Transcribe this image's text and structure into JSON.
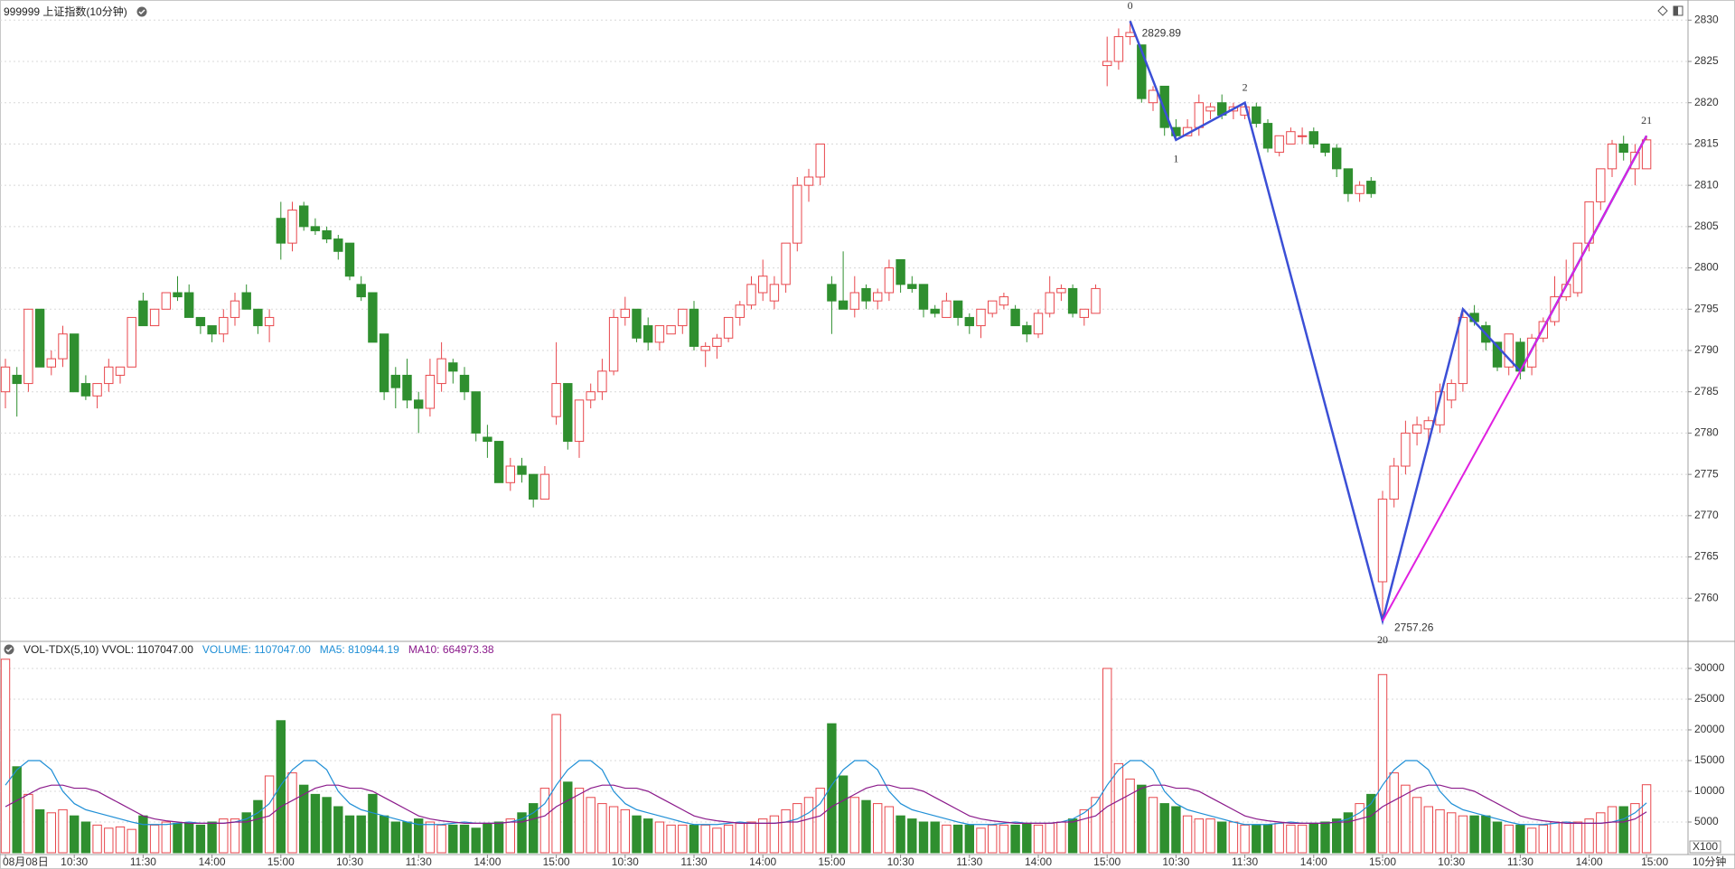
{
  "chart_data": {
    "type": "candlestick",
    "title": "999999 上证指数(10分钟)",
    "timeframe": "10分钟",
    "categories": [
      "08月08日",
      null,
      null,
      null,
      null,
      null,
      "10:30",
      null,
      null,
      null,
      null,
      null,
      "11:30",
      null,
      null,
      null,
      null,
      null,
      "14:00",
      null,
      null,
      null,
      null,
      null,
      "15:00",
      null,
      null,
      null,
      null,
      null,
      "10:30",
      null,
      null,
      null,
      null,
      null,
      "11:30",
      null,
      null,
      null,
      null,
      null,
      "14:00",
      null,
      null,
      null,
      null,
      null,
      "15:00",
      null,
      null,
      null,
      null,
      null,
      "10:30",
      null,
      null,
      null,
      null,
      null,
      "11:30",
      null,
      null,
      null,
      null,
      null,
      "14:00",
      null,
      null,
      null,
      null,
      null,
      "15:00",
      null,
      null,
      null,
      null,
      null,
      "10:30",
      null,
      null,
      null,
      null,
      null,
      "11:30",
      null,
      null,
      null,
      null,
      null,
      "14:00",
      null,
      null,
      null,
      null,
      null,
      "15:00",
      null,
      null,
      null,
      null,
      null,
      "10:30",
      null,
      null,
      null,
      null,
      null,
      "11:30",
      null,
      null,
      null,
      null,
      null,
      "14:00",
      null,
      null,
      null,
      null,
      null,
      "15:00",
      null,
      null,
      null,
      null,
      null,
      "10:30",
      null,
      null,
      null,
      null,
      null,
      "11:30",
      null,
      null,
      null,
      null,
      null,
      "14:00",
      null,
      null,
      null,
      null,
      "15:00"
    ],
    "open": [
      2785,
      2787,
      2786,
      2795,
      2788,
      2789,
      2792,
      2786,
      2784.5,
      2786,
      2787,
      2788,
      2796,
      2793,
      2795,
      2797,
      2797,
      2794,
      2793,
      2792,
      2794,
      2797,
      2795,
      2793,
      2806,
      2803,
      2807.5,
      2805,
      2804.5,
      2803.5,
      2803,
      2798,
      2797,
      2792,
      2787,
      2787,
      2784,
      2783,
      2786,
      2788.5,
      2787,
      2785,
      2779.5,
      2779,
      2774,
      2776,
      2775,
      2772,
      2782,
      2786,
      2779,
      2784,
      2785,
      2787.5,
      2794,
      2795,
      2793,
      2791,
      2792,
      2793,
      2795,
      2790,
      2790.5,
      2791.5,
      2794,
      2795.5,
      2797,
      2796,
      2798,
      2803,
      2810,
      2811,
      2798,
      2796,
      2795,
      2797.5,
      2796,
      2797,
      2801,
      2798,
      2798,
      2795,
      2794,
      2796,
      2794,
      2793,
      2794.5,
      2795.5,
      2795,
      2793,
      2792,
      2794.5,
      2797,
      2797.5,
      2794,
      2794.5,
      2824.5,
      2825,
      2828,
      2827,
      2820,
      2822,
      2817,
      2816,
      2817,
      2819,
      2820,
      2819,
      2818.5,
      2819.5,
      2817.5,
      2814,
      2815,
      2816,
      2816.5,
      2815,
      2814.5,
      2812,
      2809,
      2810.5,
      2762,
      2772,
      2776,
      2780,
      2780.5,
      2781,
      2784,
      2786,
      2794.5,
      2793,
      2791,
      2788,
      2791,
      2788,
      2791.5,
      2793.5,
      2796.5,
      2797,
      2803,
      2808,
      2812,
      2815,
      2812,
      2812
    ],
    "high": [
      2789,
      2788,
      2795,
      2795,
      2790,
      2793,
      2792,
      2787,
      2786,
      2789,
      2788,
      2794,
      2797,
      2795,
      2797,
      2799,
      2798,
      2794,
      2793,
      2795,
      2797,
      2798,
      2795,
      2795,
      2808,
      2808,
      2808,
      2806,
      2805,
      2804,
      2803,
      2799,
      2797,
      2792,
      2788,
      2789,
      2785,
      2789,
      2791,
      2789,
      2788,
      2785,
      2781,
      2779,
      2777,
      2777,
      2775,
      2776,
      2791,
      2786,
      2784,
      2786,
      2789,
      2795,
      2796.5,
      2795,
      2794,
      2793,
      2793,
      2795,
      2796,
      2791,
      2792,
      2794,
      2796,
      2799,
      2801,
      2799,
      2803,
      2811,
      2812,
      2815,
      2799,
      2802,
      2799,
      2798,
      2797.5,
      2801,
      2801,
      2799,
      2798,
      2795.5,
      2797,
      2796,
      2794.5,
      2795,
      2796,
      2797,
      2795.5,
      2793.5,
      2795,
      2799,
      2798,
      2798,
      2795,
      2798,
      2828,
      2829,
      2829.89,
      2827,
      2822,
      2822,
      2818,
      2818,
      2821,
      2820,
      2821,
      2820,
      2820,
      2820,
      2818,
      2816,
      2817,
      2817,
      2817,
      2815,
      2815,
      2812,
      2810.5,
      2811,
      2773,
      2777,
      2781.5,
      2782,
      2782,
      2786,
      2786.5,
      2795,
      2795.5,
      2793.5,
      2791,
      2792,
      2791.5,
      2792,
      2794,
      2799,
      2801,
      2803,
      2808,
      2812,
      2815.5,
      2816,
      2815,
      2816
    ],
    "low": [
      2783,
      2782,
      2785,
      2788,
      2787,
      2788,
      2785,
      2784,
      2783,
      2785,
      2786,
      2788,
      2793,
      2793,
      2795,
      2796,
      2794,
      2792,
      2791,
      2791,
      2793,
      2795,
      2792,
      2791,
      2801,
      2802,
      2804.5,
      2804,
      2803,
      2801,
      2798.5,
      2796,
      2791,
      2784,
      2783,
      2783,
      2780,
      2782,
      2785,
      2786,
      2784,
      2779,
      2777,
      2774,
      2773,
      2774,
      2771,
      2772,
      2781,
      2778,
      2777,
      2783,
      2784,
      2787,
      2793,
      2791,
      2790,
      2790,
      2792,
      2792,
      2790,
      2788,
      2789,
      2791,
      2793,
      2795,
      2796,
      2795,
      2797,
      2802,
      2808,
      2810,
      2792,
      2795,
      2794,
      2795,
      2795,
      2796,
      2797,
      2797,
      2794,
      2794,
      2794,
      2793,
      2792,
      2791.5,
      2794,
      2795,
      2793,
      2791,
      2791.5,
      2794,
      2796,
      2794,
      2793,
      2794.5,
      2822,
      2824,
      2827,
      2820,
      2819,
      2816,
      2815.5,
      2816,
      2816,
      2818,
      2818,
      2818,
      2818,
      2817,
      2814,
      2813.5,
      2815,
      2815,
      2814.5,
      2813.5,
      2811,
      2808,
      2808,
      2808.5,
      2757.26,
      2771,
      2775,
      2778.5,
      2779,
      2780,
      2783,
      2785,
      2793,
      2790,
      2787.5,
      2787,
      2786.5,
      2787,
      2791,
      2793,
      2796,
      2796.5,
      2802,
      2807,
      2811,
      2813,
      2810,
      2812
    ],
    "close": [
      2788,
      2786,
      2795,
      2788,
      2789,
      2792,
      2785,
      2784.5,
      2786,
      2788,
      2788,
      2794,
      2793,
      2795,
      2797,
      2796.5,
      2794,
      2793,
      2792,
      2794,
      2796,
      2795,
      2793,
      2794,
      2803,
      2807,
      2805,
      2804.5,
      2803.5,
      2802,
      2799,
      2796.5,
      2791,
      2785,
      2785.5,
      2784,
      2783,
      2787,
      2789,
      2787.5,
      2785,
      2780,
      2779,
      2774,
      2776,
      2775,
      2772,
      2775,
      2786,
      2779,
      2784,
      2785,
      2787.5,
      2794,
      2795,
      2791.5,
      2791,
      2793,
      2793,
      2795,
      2790.5,
      2790.5,
      2791.5,
      2794,
      2795.5,
      2798,
      2799,
      2798,
      2803,
      2810,
      2811,
      2815,
      2796,
      2795,
      2797,
      2796,
      2797,
      2800,
      2798,
      2797.5,
      2795,
      2794.5,
      2796,
      2794,
      2793,
      2795,
      2796,
      2796.5,
      2793,
      2792,
      2794.5,
      2797,
      2797.5,
      2794.5,
      2795,
      2797.5,
      2825,
      2828,
      2828.5,
      2820.5,
      2821.5,
      2817,
      2816,
      2817,
      2820,
      2819.5,
      2818.5,
      2819.5,
      2819.5,
      2817.5,
      2814.5,
      2816,
      2816.5,
      2816,
      2815,
      2814,
      2812,
      2809,
      2810,
      2809,
      2772,
      2776,
      2780,
      2781,
      2781.5,
      2785,
      2786,
      2794,
      2793.5,
      2791,
      2788,
      2792,
      2787.5,
      2791.5,
      2793.5,
      2796.5,
      2798,
      2803,
      2808,
      2812,
      2815,
      2814,
      2814,
      2815.5
    ],
    "up_color": "#e8474c",
    "down_color": "#2f8f2f",
    "ylim": [
      2755,
      2832
    ],
    "yticks": [
      2760,
      2765,
      2770,
      2775,
      2780,
      2785,
      2790,
      2795,
      2800,
      2805,
      2810,
      2815,
      2820,
      2825,
      2830
    ],
    "grid": true,
    "zigzag": [
      {
        "color": "#3b4fd6",
        "labels": [
          "0",
          "1",
          "2",
          "20",
          null,
          null,
          "21"
        ],
        "value_labels": [
          "2829.89",
          null,
          null,
          "2757.26",
          null,
          null,
          null
        ],
        "bars": [
          98,
          102,
          108,
          120,
          127,
          132,
          143
        ],
        "values": [
          2829.89,
          2815.5,
          2820,
          2757.26,
          2795,
          2787.5,
          2816
        ]
      },
      {
        "color": "#e020e0",
        "bars": [
          120,
          132,
          143
        ],
        "values": [
          2757.26,
          2787.5,
          2816
        ]
      }
    ],
    "volume": {
      "title": "VOL-TDX(5,10)  VVOL: 1107047.00",
      "unit": "X100",
      "ylim": [
        0,
        32200
      ],
      "yticks": [
        5000,
        10000,
        15000,
        20000,
        25000,
        30000
      ],
      "series": [
        {
          "name": "VOLUME: 1107047.00",
          "color": "#1f8fd6",
          "values": [
            31500,
            14000,
            9500,
            7000,
            6500,
            7000,
            6000,
            5000,
            4500,
            4000,
            4200,
            3800,
            6000,
            4500,
            5000,
            4800,
            4800,
            4500,
            5000,
            5500,
            5500,
            6500,
            8500,
            12500,
            21500,
            13000,
            11000,
            9500,
            9000,
            7500,
            6000,
            6000,
            9500,
            6000,
            5000,
            5000,
            5500,
            5000,
            4500,
            4500,
            4500,
            4000,
            4800,
            5000,
            5500,
            6500,
            8000,
            10500,
            22500,
            11500,
            10500,
            9000,
            8000,
            7500,
            7000,
            6000,
            5500,
            5000,
            4500,
            4500,
            4500,
            4500,
            4000,
            4500,
            4800,
            5000,
            5500,
            6000,
            7000,
            8000,
            9000,
            10500,
            21000,
            12500,
            9000,
            8500,
            8000,
            7500,
            6000,
            5500,
            5000,
            5000,
            4500,
            4500,
            4500,
            4000,
            4500,
            4500,
            4500,
            4800,
            4500,
            4800,
            5000,
            5500,
            7000,
            9000,
            30000,
            14500,
            12000,
            11000,
            9000,
            8000,
            7500,
            6000,
            5500,
            5500,
            5000,
            5000,
            4500,
            4500,
            4500,
            4800,
            4500,
            4500,
            4800,
            5000,
            5500,
            6500,
            8000,
            9500,
            29000,
            13000,
            11000,
            9000,
            7500,
            7000,
            6500,
            6000,
            6000,
            6000,
            5000,
            4500,
            4500,
            4000,
            4500,
            5000,
            5000,
            5000,
            5500,
            6500,
            7500,
            7500,
            8000,
            11070
          ]
        },
        {
          "name": "MA5: 810944.19",
          "color": "#1f8fd6",
          "values": [
            11000,
            13500,
            15000,
            15000,
            13500,
            10000,
            8000,
            7000,
            6500,
            6000,
            5500,
            5000,
            4600,
            4600,
            4600,
            4800,
            5000,
            4800,
            4800,
            4800,
            5000,
            5500,
            6500,
            8000,
            11000,
            13500,
            15000,
            15000,
            13500,
            10000,
            8000,
            7000,
            6500,
            6000,
            5500,
            5000,
            4600,
            4600,
            4600,
            4800,
            5000,
            4800,
            4800,
            4800,
            5000,
            5500,
            6500,
            8000,
            11000,
            13500,
            15000,
            15000,
            13500,
            10000,
            8000,
            7000,
            6500,
            6000,
            5500,
            5000,
            4600,
            4600,
            4600,
            4800,
            5000,
            4800,
            4800,
            4800,
            5000,
            5500,
            6500,
            8000,
            11000,
            13500,
            15000,
            15000,
            13500,
            10000,
            8000,
            7000,
            6500,
            6000,
            5500,
            5000,
            4600,
            4600,
            4600,
            4800,
            5000,
            4800,
            4800,
            4800,
            5000,
            5500,
            6500,
            8000,
            11000,
            13500,
            15000,
            15000,
            13500,
            10000,
            8000,
            7000,
            6500,
            6000,
            5500,
            5000,
            4600,
            4600,
            4600,
            4800,
            5000,
            4800,
            4800,
            4800,
            5000,
            5500,
            6500,
            8000,
            11000,
            13500,
            15000,
            15000,
            13500,
            10000,
            8000,
            7000,
            6500,
            6000,
            5500,
            5000,
            4600,
            4600,
            4600,
            4800,
            5000,
            4800,
            4800,
            4800,
            5000,
            5500,
            6500,
            8109
          ]
        },
        {
          "name": "MA10: 664973.38",
          "color": "#8b1a8b",
          "values": [
            7500,
            8500,
            9500,
            10500,
            11000,
            11000,
            10500,
            10500,
            10000,
            9000,
            8000,
            7000,
            6000,
            5500,
            5200,
            5000,
            4800,
            4800,
            4800,
            4800,
            5000,
            5000,
            5500,
            6000,
            7500,
            8500,
            9500,
            10500,
            11000,
            11000,
            10500,
            10500,
            10000,
            9000,
            8000,
            7000,
            6000,
            5500,
            5200,
            5000,
            4800,
            4800,
            4800,
            4800,
            5000,
            5000,
            5500,
            6000,
            7500,
            8500,
            9500,
            10500,
            11000,
            11000,
            10500,
            10500,
            10000,
            9000,
            8000,
            7000,
            6000,
            5500,
            5200,
            5000,
            4800,
            4800,
            4800,
            4800,
            5000,
            5000,
            5500,
            6000,
            7500,
            8500,
            9500,
            10500,
            11000,
            11000,
            10500,
            10500,
            10000,
            9000,
            8000,
            7000,
            6000,
            5500,
            5200,
            5000,
            4800,
            4800,
            4800,
            4800,
            5000,
            5000,
            5500,
            6000,
            7500,
            8500,
            9500,
            10500,
            11000,
            11000,
            10500,
            10500,
            10000,
            9000,
            8000,
            7000,
            6000,
            5500,
            5200,
            5000,
            4800,
            4800,
            4800,
            4800,
            5000,
            5000,
            5500,
            6000,
            7500,
            8500,
            9500,
            10500,
            11000,
            11000,
            10500,
            10500,
            10000,
            9000,
            8000,
            7000,
            6000,
            5500,
            5200,
            5000,
            4800,
            4800,
            4800,
            4800,
            5000,
            5000,
            5500,
            6650
          ]
        }
      ]
    }
  }
}
